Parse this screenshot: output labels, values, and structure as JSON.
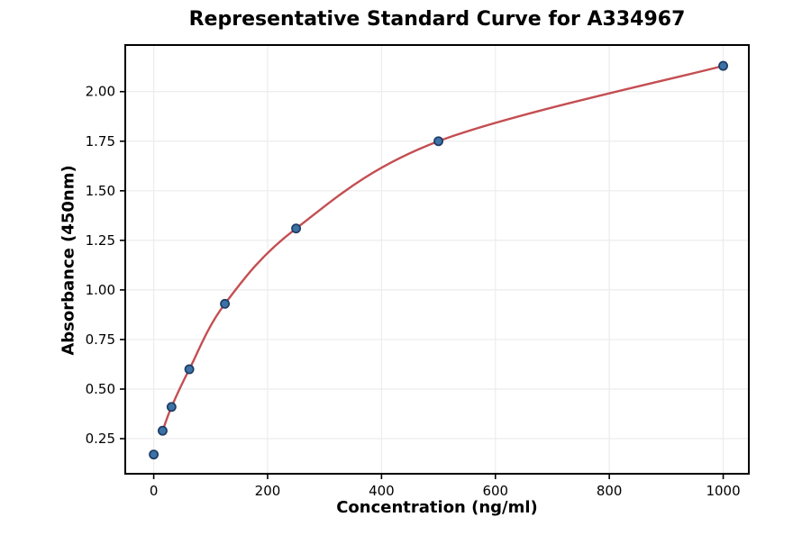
{
  "chart_data": {
    "type": "scatter",
    "title": "Representative Standard Curve for A334967",
    "xlabel": "Concentration (ng/ml)",
    "ylabel": "Absorbance (450nm)",
    "x": [
      0,
      15.6,
      31.25,
      62.5,
      125,
      250,
      500,
      1000
    ],
    "y": [
      0.17,
      0.29,
      0.41,
      0.6,
      0.93,
      1.31,
      1.75,
      2.13
    ],
    "x_ticks": [
      0,
      200,
      400,
      600,
      800,
      1000
    ],
    "y_ticks": [
      0.25,
      0.5,
      0.75,
      1.0,
      1.25,
      1.5,
      1.75,
      2.0
    ],
    "xlim": [
      -50,
      1045
    ],
    "ylim": [
      0.073,
      2.235
    ],
    "grid": true,
    "legend": null,
    "fit_curve": {
      "style": "smooth-4pl-fit",
      "x_start": 15.6,
      "x_end": 1000,
      "color": "#C44E52",
      "width": 2.4
    },
    "marker": {
      "fill": "#3C72A6",
      "edge": "#1E3C63",
      "radius": 4.6,
      "edge_width": 1.7
    },
    "grid_color": "#ececec",
    "spine_color": "#000000",
    "tick_color": "#000000"
  }
}
